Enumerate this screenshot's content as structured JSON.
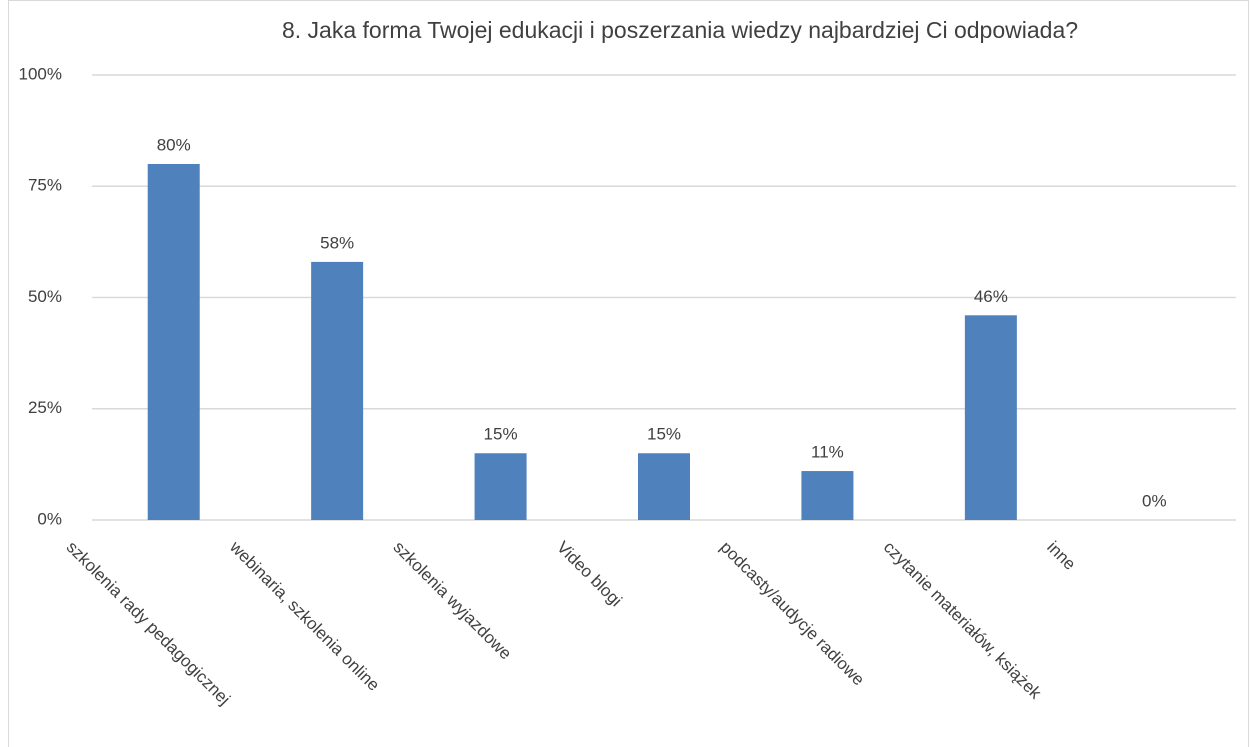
{
  "chart_data": {
    "type": "bar",
    "title": "8. Jaka forma Twojej edukacji i poszerzania wiedzy najbardziej Ci odpowiada?",
    "categories": [
      "szkolenia rady pedagogicznej",
      "webinaria, szkolenia online",
      "szkolenia wyjazdowe",
      "Video blogi",
      "podcasty/audycje radiowe",
      "czytanie materiałów, książek",
      "inne"
    ],
    "values": [
      80,
      58,
      15,
      15,
      11,
      46,
      0
    ],
    "value_labels": [
      "80%",
      "58%",
      "15%",
      "15%",
      "11%",
      "46%",
      "0%"
    ],
    "color": "#4f81bd",
    "ylim": [
      0,
      100
    ],
    "yticks": [
      {
        "value": 0,
        "label": "0%"
      },
      {
        "value": 25,
        "label": "25%"
      },
      {
        "value": 50,
        "label": "50%"
      },
      {
        "value": 75,
        "label": "75%"
      },
      {
        "value": 100,
        "label": "100%"
      }
    ],
    "grid": true
  }
}
